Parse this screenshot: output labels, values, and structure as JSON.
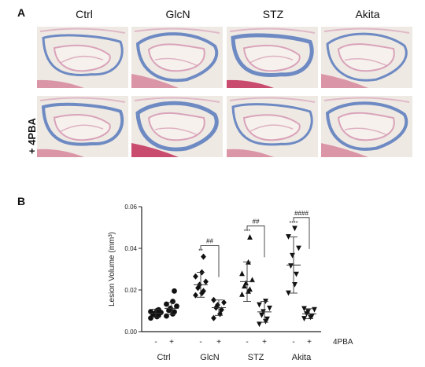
{
  "panel_a": {
    "letter": "A",
    "columns": [
      "Ctrl",
      "GlcN",
      "STZ",
      "Akita"
    ],
    "row_label": "+ 4PBA"
  },
  "panel_b": {
    "letter": "B"
  },
  "colors": {
    "tissue_pink": "#d9a3ba",
    "collagen_blue": "#5f7fbf",
    "muscle_red": "#c2305a",
    "background": "#efe9e4"
  },
  "chart_data": {
    "type": "scatter",
    "ylabel": "Lesion Volume (mm³)",
    "ylim": [
      0,
      0.06
    ],
    "yticks": [
      "0.00",
      "0.02",
      "0.04",
      "0.06"
    ],
    "groups": [
      "Ctrl",
      "GlcN",
      "STZ",
      "Akita"
    ],
    "treatment_ticks": [
      "-",
      "+",
      "-",
      "+",
      "-",
      "+",
      "-",
      "+"
    ],
    "treatment_label": "4PBA",
    "series": [
      {
        "group": "Ctrl",
        "treat": "-",
        "marker": "circle",
        "mean": 0.0088,
        "sd_low": 0.0068,
        "sd_high": 0.0108,
        "values": [
          0.0065,
          0.0072,
          0.0078,
          0.0083,
          0.0087,
          0.0092,
          0.0096,
          0.0101,
          0.0105
        ]
      },
      {
        "group": "Ctrl",
        "treat": "+",
        "marker": "circle",
        "mean": 0.0112,
        "sd_low": 0.0083,
        "sd_high": 0.014,
        "values": [
          0.0075,
          0.0085,
          0.0095,
          0.0102,
          0.0112,
          0.0122,
          0.0132,
          0.0145,
          0.0195
        ]
      },
      {
        "group": "GlcN",
        "treat": "-",
        "marker": "diamond",
        "mean": 0.0225,
        "sd_low": 0.0165,
        "sd_high": 0.0285,
        "values": [
          0.0175,
          0.0185,
          0.0195,
          0.021,
          0.0225,
          0.024,
          0.0265,
          0.0285,
          0.036
        ]
      },
      {
        "group": "GlcN",
        "treat": "+",
        "marker": "diamond",
        "mean": 0.0115,
        "sd_low": 0.0078,
        "sd_high": 0.0152,
        "values": [
          0.0065,
          0.0085,
          0.0105,
          0.0115,
          0.0128,
          0.014,
          0.0152
        ]
      },
      {
        "group": "STZ",
        "treat": "-",
        "marker": "triangle-up",
        "mean": 0.024,
        "sd_low": 0.0145,
        "sd_high": 0.0335,
        "values": [
          0.018,
          0.0195,
          0.0205,
          0.022,
          0.0235,
          0.025,
          0.028,
          0.0335,
          0.0455
        ]
      },
      {
        "group": "STZ",
        "treat": "+",
        "marker": "triangle-down",
        "mean": 0.0095,
        "sd_low": 0.0045,
        "sd_high": 0.0145,
        "values": [
          0.0035,
          0.0048,
          0.006,
          0.0078,
          0.0095,
          0.0112,
          0.0128,
          0.0145
        ]
      },
      {
        "group": "Akita",
        "treat": "-",
        "marker": "triangle-down",
        "mean": 0.032,
        "sd_low": 0.0185,
        "sd_high": 0.0455,
        "values": [
          0.0185,
          0.0225,
          0.0275,
          0.0315,
          0.0365,
          0.04,
          0.0455,
          0.0495
        ]
      },
      {
        "group": "Akita",
        "treat": "+",
        "marker": "triangle-down",
        "mean": 0.0085,
        "sd_low": 0.0062,
        "sd_high": 0.011,
        "values": [
          0.0062,
          0.0068,
          0.0075,
          0.0085,
          0.0095,
          0.0105,
          0.011
        ]
      }
    ],
    "significance_stars": [
      {
        "group": "GlcN",
        "text": "**"
      },
      {
        "group": "STZ",
        "text": "***"
      },
      {
        "group": "Akita",
        "text": "****"
      }
    ],
    "comparison_brackets": [
      {
        "group": "GlcN",
        "text": "##"
      },
      {
        "group": "STZ",
        "text": "##"
      },
      {
        "group": "Akita",
        "text": "####"
      }
    ]
  }
}
